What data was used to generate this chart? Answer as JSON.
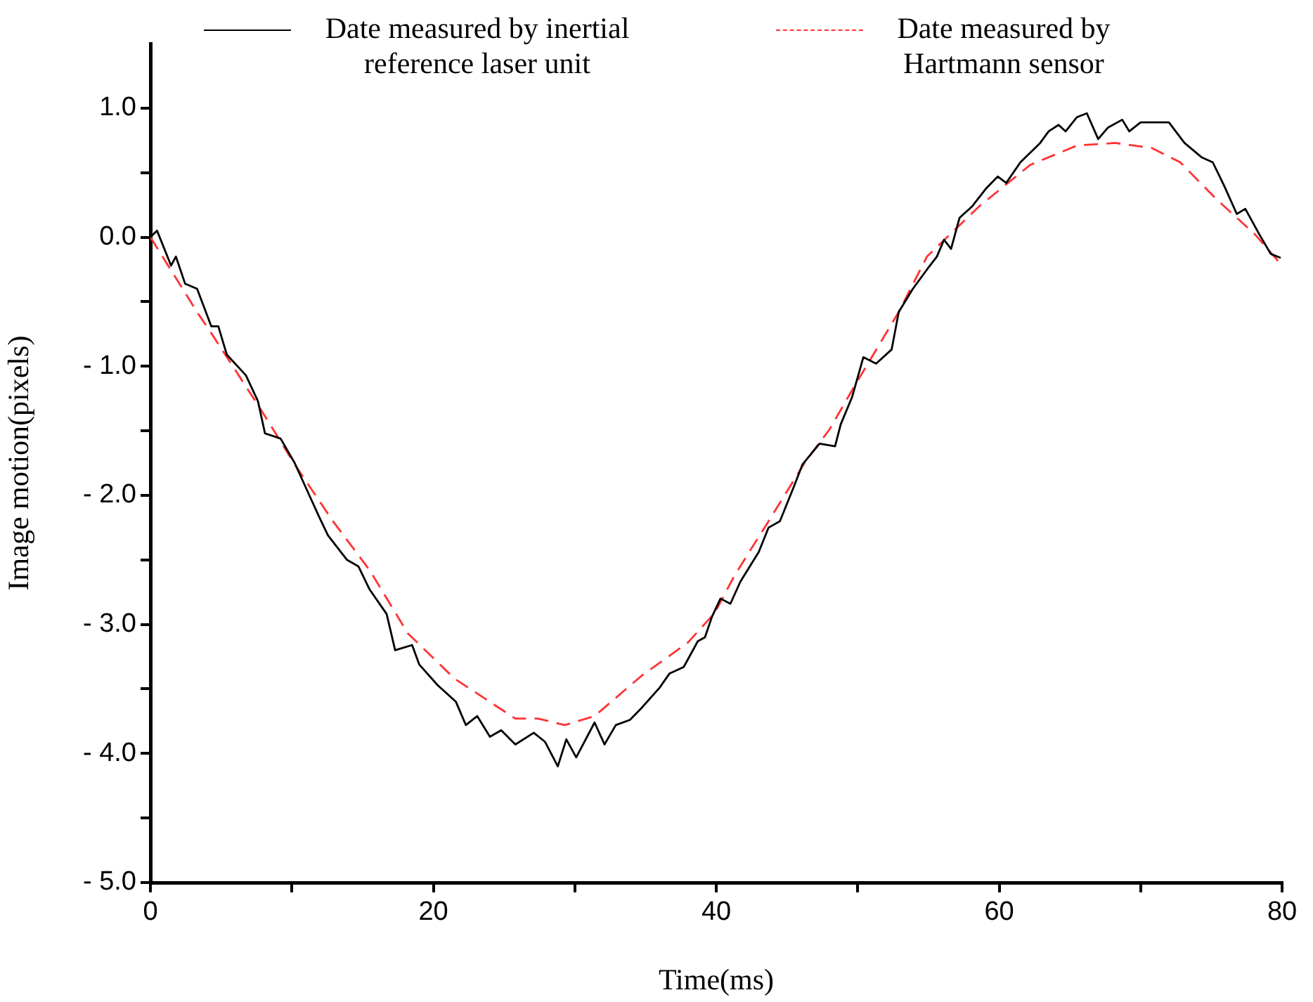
{
  "chart_data": {
    "type": "line",
    "xlabel": "Time(ms)",
    "ylabel": "Image motion(pixels)",
    "legend": "top",
    "grid": false,
    "xlim": [
      0,
      80
    ],
    "xticks": [
      0,
      {
        "value": 10,
        "label": null
      },
      20,
      {
        "value": 30,
        "label": null
      },
      40,
      {
        "value": 50,
        "label": null
      },
      60,
      {
        "value": 70,
        "label": null
      },
      80
    ],
    "ylim": [
      -5,
      1.5
    ],
    "yticks": [
      {
        "value": -5,
        "label": "- 5.0"
      },
      {
        "value": -4.5,
        "label": null
      },
      {
        "value": -4,
        "label": "- 4.0"
      },
      {
        "value": -3.5,
        "label": null
      },
      {
        "value": -3,
        "label": "- 3.0"
      },
      {
        "value": -2.5,
        "label": null
      },
      {
        "value": -2,
        "label": "- 2.0"
      },
      {
        "value": -1.5,
        "label": null
      },
      {
        "value": -1,
        "label": "- 1.0"
      },
      {
        "value": -0.5,
        "label": null
      },
      {
        "value": 0,
        "label": "0.0"
      },
      {
        "value": 0.5,
        "label": null
      },
      {
        "value": 1,
        "label": "1.0"
      }
    ],
    "series": [
      {
        "name": "Date measured by inertial reference laser unit",
        "color": "#000000",
        "line_style": "solid",
        "marker": "none",
        "x": [
          0,
          0.47,
          1.46,
          1.8,
          2.45,
          3.3,
          4.3,
          4.8,
          5.4,
          6.75,
          7.6,
          8.1,
          9.2,
          10.2,
          11.4,
          11.9,
          12.55,
          13.9,
          14.7,
          15.5,
          16.7,
          17.3,
          18.5,
          19.0,
          20.3,
          21.6,
          22.3,
          23.1,
          24.0,
          24.8,
          25.8,
          27.1,
          27.9,
          28.8,
          29.4,
          30.1,
          31.4,
          32.1,
          32.9,
          33.9,
          34.7,
          36.0,
          36.7,
          37.7,
          38.7,
          39.2,
          39.7,
          40.3,
          41.0,
          41.7,
          43.0,
          43.7,
          44.5,
          45.5,
          46.1,
          47.3,
          48.4,
          48.8,
          49.6,
          50.4,
          51.3,
          52.4,
          52.9,
          53.9,
          54.9,
          55.6,
          56.1,
          56.6,
          57.2,
          58.1,
          59.1,
          59.9,
          60.5,
          61.5,
          62.9,
          63.5,
          64.2,
          64.7,
          65.5,
          66.2,
          67.0,
          67.7,
          68.7,
          69.2,
          70.0,
          70.8,
          72.0,
          73.1,
          74.3,
          75.1,
          75.9,
          76.8,
          77.4,
          78.4,
          79.2,
          79.9
        ],
        "values": [
          0,
          0.05,
          -0.22,
          -0.15,
          -0.36,
          -0.4,
          -0.69,
          -0.69,
          -0.91,
          -1.07,
          -1.27,
          -1.52,
          -1.56,
          -1.75,
          -2.04,
          -2.16,
          -2.31,
          -2.5,
          -2.55,
          -2.73,
          -2.92,
          -3.2,
          -3.16,
          -3.31,
          -3.47,
          -3.6,
          -3.78,
          -3.71,
          -3.87,
          -3.82,
          -3.93,
          -3.84,
          -3.91,
          -4.1,
          -3.89,
          -4.03,
          -3.76,
          -3.93,
          -3.78,
          -3.74,
          -3.65,
          -3.49,
          -3.38,
          -3.33,
          -3.13,
          -3.1,
          -2.94,
          -2.8,
          -2.84,
          -2.67,
          -2.44,
          -2.25,
          -2.2,
          -1.93,
          -1.76,
          -1.6,
          -1.62,
          -1.45,
          -1.24,
          -0.93,
          -0.98,
          -0.87,
          -0.58,
          -0.4,
          -0.25,
          -0.15,
          -0.02,
          -0.09,
          0.15,
          0.24,
          0.38,
          0.47,
          0.42,
          0.58,
          0.73,
          0.82,
          0.87,
          0.82,
          0.93,
          0.96,
          0.76,
          0.85,
          0.91,
          0.82,
          0.89,
          0.89,
          0.89,
          0.73,
          0.62,
          0.58,
          0.4,
          0.18,
          0.22,
          0.02,
          -0.13,
          -0.16
        ]
      },
      {
        "name": "Date measured by Hartmann sensor",
        "color": "#ff3333",
        "line_style": "dashed",
        "marker": "none",
        "x": [
          0,
          3.3,
          4.4,
          7.6,
          8.4,
          10.2,
          12.9,
          15.5,
          18.2,
          21.5,
          25.8,
          27.4,
          29.3,
          31.4,
          34.7,
          38.0,
          39.9,
          41.3,
          43.7,
          46.3,
          48.0,
          49.9,
          52.9,
          54.9,
          58.6,
          62.2,
          65.5,
          68.2,
          70.8,
          72.8,
          75.4,
          78.1,
          80.0
        ],
        "values": [
          0,
          -0.58,
          -0.76,
          -1.3,
          -1.44,
          -1.76,
          -2.2,
          -2.58,
          -3.07,
          -3.42,
          -3.73,
          -3.73,
          -3.78,
          -3.71,
          -3.4,
          -3.14,
          -2.91,
          -2.62,
          -2.2,
          -1.74,
          -1.49,
          -1.13,
          -0.58,
          -0.15,
          0.24,
          0.56,
          0.71,
          0.73,
          0.69,
          0.58,
          0.29,
          0.02,
          -0.22
        ]
      }
    ]
  }
}
